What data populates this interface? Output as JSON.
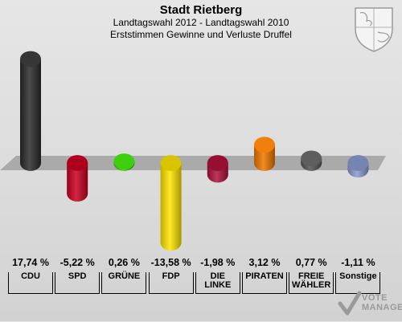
{
  "header": {
    "title": "Stadt Rietberg",
    "subtitle1": "Landtagswahl 2012 - Landtagswahl 2010",
    "subtitle2": "Erststimmen Gewinne und Verluste Druffel"
  },
  "logo": {
    "text_line1": "VOTE",
    "text_line2": "MANAGER"
  },
  "parties": [
    {
      "name": "CDU",
      "value_label": "17,74 %"
    },
    {
      "name": "SPD",
      "value_label": "-5,22 %"
    },
    {
      "name": "GRÜNE",
      "value_label": "0,26 %"
    },
    {
      "name": "FDP",
      "value_label": "-13,58 %"
    },
    {
      "name": "DIE LINKE",
      "value_label": "-1,98 %"
    },
    {
      "name": "PIRATEN",
      "value_label": "3,12 %"
    },
    {
      "name": "FREIE WÄHLER",
      "value_label": "0,77 %"
    },
    {
      "name": "Sonstige",
      "value_label": "-1,11 %"
    }
  ],
  "chart_data": {
    "type": "bar",
    "title": "Stadt Rietberg",
    "subtitle": "Landtagswahl 2012 - Landtagswahl 2010 / Erststimmen Gewinne und Verluste Druffel",
    "categories": [
      "CDU",
      "SPD",
      "GRÜNE",
      "FDP",
      "DIE LINKE",
      "PIRATEN",
      "FREIE WÄHLER",
      "Sonstige"
    ],
    "values": [
      17.74,
      -5.22,
      0.26,
      -13.58,
      -1.98,
      3.12,
      0.77,
      -1.11
    ],
    "unit": "%",
    "colors": [
      "#2b2b2b",
      "#cc0022",
      "#33cc00",
      "#ffe600",
      "#b0123c",
      "#f07800",
      "#555555",
      "#8a9bd0"
    ],
    "baseline_band_color": "#aaaaaa"
  }
}
